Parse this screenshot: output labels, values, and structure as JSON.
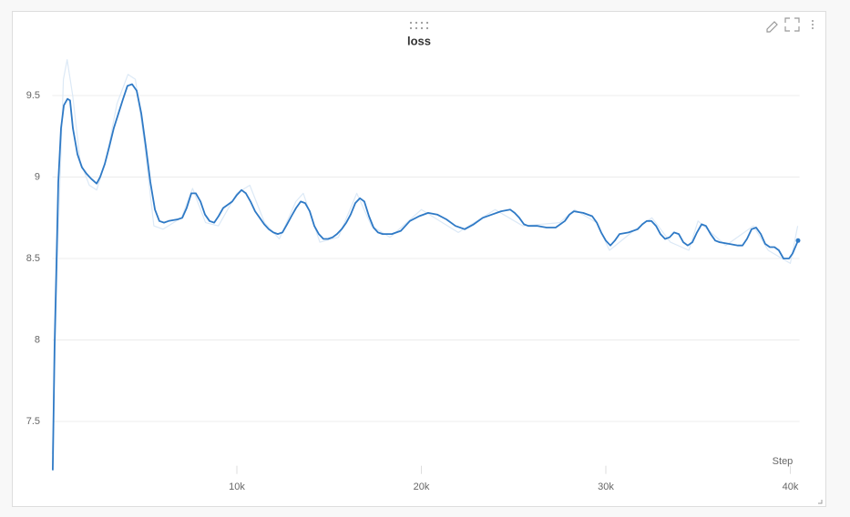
{
  "chart_data": {
    "type": "line",
    "title": "loss",
    "x_label": "Step",
    "xlim": [
      0,
      40500
    ],
    "ylim": [
      7.2,
      9.75
    ],
    "xticks": [
      {
        "value": 10000,
        "label": "10k"
      },
      {
        "value": 20000,
        "label": "20k"
      },
      {
        "value": 30000,
        "label": "30k"
      },
      {
        "value": 40000,
        "label": "40k"
      }
    ],
    "yticks": [
      7.5,
      8,
      8.5,
      9,
      9.5
    ],
    "grid": true,
    "series": [
      {
        "color": "#dce9f6",
        "x": [
          0,
          300,
          600,
          800,
          1100,
          1500,
          2000,
          2400,
          2900,
          3500,
          4100,
          4500,
          5000,
          5500,
          6000,
          7000,
          7600,
          8300,
          9000,
          10000,
          10700,
          11500,
          12300,
          13200,
          13600,
          14500,
          15500,
          16500,
          17300,
          18300,
          20000,
          22000,
          24000,
          25500,
          27500,
          28300,
          29500,
          30200,
          31500,
          32500,
          33500,
          34500,
          35000,
          36500,
          38000,
          38800,
          40000,
          40400
        ],
        "values": [
          7.3,
          8.6,
          9.6,
          9.72,
          9.5,
          9.1,
          8.95,
          8.92,
          9.1,
          9.45,
          9.63,
          9.6,
          9.2,
          8.7,
          8.68,
          8.75,
          8.93,
          8.72,
          8.7,
          8.9,
          8.95,
          8.72,
          8.62,
          8.85,
          8.9,
          8.6,
          8.63,
          8.9,
          8.7,
          8.63,
          8.8,
          8.66,
          8.8,
          8.7,
          8.72,
          8.8,
          8.72,
          8.55,
          8.67,
          8.75,
          8.6,
          8.55,
          8.73,
          8.58,
          8.7,
          8.55,
          8.47,
          8.7
        ]
      },
      {
        "color": "#2f7ac6",
        "x": [
          20,
          120,
          220,
          320,
          470,
          620,
          820,
          960,
          1110,
          1360,
          1600,
          1850,
          2100,
          2400,
          2590,
          2840,
          3090,
          3330,
          3580,
          3830,
          4070,
          4320,
          4570,
          4820,
          5060,
          5310,
          5560,
          5800,
          6050,
          6300,
          6790,
          7040,
          7280,
          7530,
          7780,
          8030,
          8270,
          8520,
          8770,
          9010,
          9260,
          9510,
          9750,
          10000,
          10250,
          10490,
          10740,
          10990,
          11240,
          11480,
          11730,
          11980,
          12220,
          12470,
          12720,
          12960,
          13210,
          13460,
          13700,
          13950,
          14200,
          14440,
          14690,
          14940,
          15190,
          15430,
          15680,
          15930,
          16170,
          16420,
          16670,
          16910,
          17160,
          17410,
          17650,
          17900,
          18400,
          18890,
          19380,
          19880,
          20370,
          20860,
          21360,
          21850,
          22350,
          22840,
          23330,
          23830,
          24320,
          24820,
          25060,
          25310,
          25560,
          25800,
          26300,
          26790,
          27280,
          27780,
          28030,
          28270,
          28770,
          29260,
          29510,
          29750,
          30000,
          30250,
          30490,
          30740,
          31230,
          31730,
          31980,
          32220,
          32470,
          32720,
          32960,
          33210,
          33460,
          33700,
          33950,
          34200,
          34440,
          34690,
          34940,
          35190,
          35430,
          35680,
          35930,
          36170,
          36670,
          37160,
          37410,
          37650,
          37900,
          38150,
          38400,
          38640,
          38890,
          39140,
          39380,
          39630,
          39930,
          40120,
          40420
        ],
        "values": [
          7.2,
          7.96,
          8.47,
          8.97,
          9.3,
          9.44,
          9.48,
          9.47,
          9.3,
          9.14,
          9.06,
          9.02,
          8.99,
          8.96,
          9.0,
          9.08,
          9.19,
          9.3,
          9.39,
          9.48,
          9.56,
          9.57,
          9.53,
          9.39,
          9.19,
          8.97,
          8.8,
          8.73,
          8.72,
          8.73,
          8.74,
          8.75,
          8.81,
          8.9,
          8.9,
          8.85,
          8.77,
          8.73,
          8.72,
          8.76,
          8.81,
          8.83,
          8.85,
          8.89,
          8.92,
          8.9,
          8.85,
          8.79,
          8.75,
          8.71,
          8.68,
          8.66,
          8.65,
          8.66,
          8.71,
          8.76,
          8.81,
          8.85,
          8.84,
          8.79,
          8.7,
          8.65,
          8.62,
          8.62,
          8.63,
          8.65,
          8.68,
          8.72,
          8.77,
          8.84,
          8.87,
          8.85,
          8.76,
          8.69,
          8.66,
          8.65,
          8.65,
          8.67,
          8.73,
          8.76,
          8.78,
          8.77,
          8.74,
          8.7,
          8.68,
          8.71,
          8.75,
          8.77,
          8.79,
          8.8,
          8.78,
          8.75,
          8.71,
          8.7,
          8.7,
          8.69,
          8.69,
          8.73,
          8.77,
          8.79,
          8.78,
          8.76,
          8.72,
          8.66,
          8.61,
          8.58,
          8.61,
          8.65,
          8.66,
          8.68,
          8.71,
          8.73,
          8.73,
          8.7,
          8.65,
          8.62,
          8.63,
          8.66,
          8.65,
          8.6,
          8.58,
          8.6,
          8.66,
          8.71,
          8.7,
          8.65,
          8.61,
          8.6,
          8.59,
          8.58,
          8.58,
          8.62,
          8.68,
          8.69,
          8.65,
          8.59,
          8.57,
          8.57,
          8.55,
          8.5,
          8.5,
          8.53,
          8.61
        ]
      }
    ]
  }
}
